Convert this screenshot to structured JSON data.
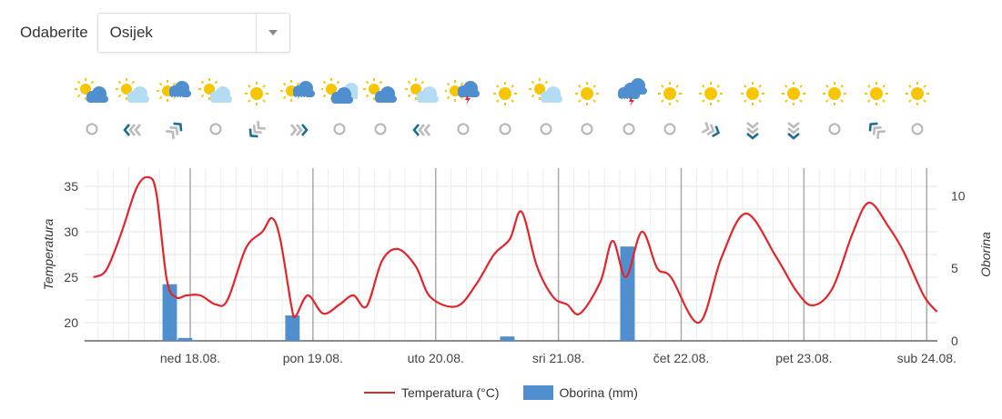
{
  "picker": {
    "label": "Odaberite",
    "value": "Osijek"
  },
  "forecast_icons": [
    "partly-cloudy-dark",
    "partly-cloudy-light",
    "partly-cloudy-rain",
    "partly-cloudy-light",
    "sunny",
    "partly-cloudy-rain",
    "partly-cloudy-mixed",
    "partly-cloudy-dark",
    "partly-cloudy-light",
    "partly-cloudy-thunder",
    "sunny",
    "partly-cloudy-light",
    "sunny",
    "rain-thunder-cloud",
    "sunny",
    "sunny",
    "sunny",
    "sunny",
    "sunny",
    "sunny",
    "sunny"
  ],
  "wind": [
    null,
    270,
    45,
    null,
    225,
    90,
    null,
    null,
    270,
    null,
    null,
    null,
    null,
    null,
    null,
    110,
    180,
    180,
    null,
    315,
    null
  ],
  "colors": {
    "temperature": "#e3242b",
    "precipitation": "#4f8fcf",
    "wind_strong": "#1a6e96",
    "wind_weak": "#bbbbbb"
  },
  "legend": {
    "temperature": "Temperatura (°C)",
    "precipitation": "Oborina (mm)"
  },
  "chart_data": {
    "type": "line+bar",
    "x_unit": "hours from 17.08. 00:00",
    "xlim": [
      3.4,
      170
    ],
    "x_ticks": [
      {
        "h": 24,
        "label": "ned 18.08."
      },
      {
        "h": 48,
        "label": "pon 19.08."
      },
      {
        "h": 72,
        "label": "uto 20.08."
      },
      {
        "h": 96,
        "label": "sri 21.08."
      },
      {
        "h": 120,
        "label": "čet 22.08."
      },
      {
        "h": 144,
        "label": "pet 23.08."
      },
      {
        "h": 168,
        "label": "sub 24.08."
      }
    ],
    "y_left": {
      "label": "Temperatura",
      "lim": [
        18,
        37
      ],
      "ticks": [
        20,
        25,
        30,
        35
      ]
    },
    "y_right": {
      "label": "Oborina",
      "lim": [
        0,
        11.9
      ],
      "ticks": [
        0,
        5,
        10
      ]
    },
    "series": [
      {
        "name": "Temperatura (°C)",
        "type": "line",
        "axis": "left",
        "points": [
          [
            5.1,
            25.0
          ],
          [
            7.6,
            25.8
          ],
          [
            10.5,
            29.8
          ],
          [
            13.5,
            34.8
          ],
          [
            15.8,
            36.0
          ],
          [
            17.4,
            34.2
          ],
          [
            19.4,
            24.8
          ],
          [
            21.2,
            22.8
          ],
          [
            23.3,
            23.0
          ],
          [
            26,
            23.0
          ],
          [
            29,
            22.0
          ],
          [
            31.3,
            22.5
          ],
          [
            34.9,
            28.2
          ],
          [
            38.1,
            30.0
          ],
          [
            40,
            31.5
          ],
          [
            41.6,
            29.2
          ],
          [
            43.8,
            21.8
          ],
          [
            44.6,
            20.7
          ],
          [
            47,
            23.0
          ],
          [
            50,
            21.0
          ],
          [
            53.2,
            22.0
          ],
          [
            55.9,
            23.0
          ],
          [
            58.5,
            21.8
          ],
          [
            61.5,
            26.8
          ],
          [
            64.6,
            28.1
          ],
          [
            68.1,
            26.2
          ],
          [
            71,
            22.8
          ],
          [
            76.1,
            21.8
          ],
          [
            79.9,
            24.2
          ],
          [
            83.4,
            27.5
          ],
          [
            86.5,
            29.2
          ],
          [
            88.8,
            32.2
          ],
          [
            91.8,
            26.2
          ],
          [
            95,
            22.8
          ],
          [
            97.7,
            22.0
          ],
          [
            100.2,
            21.0
          ],
          [
            104.2,
            24.5
          ],
          [
            106.6,
            29.0
          ],
          [
            109.2,
            25.0
          ],
          [
            112.3,
            30.0
          ],
          [
            115.3,
            26.0
          ],
          [
            118,
            25.0
          ],
          [
            123.5,
            20.0
          ],
          [
            127.9,
            27.2
          ],
          [
            132.7,
            32.0
          ],
          [
            138.6,
            27.2
          ],
          [
            142.5,
            23.5
          ],
          [
            145.7,
            21.9
          ],
          [
            149.6,
            23.8
          ],
          [
            153.5,
            29.8
          ],
          [
            156.7,
            33.2
          ],
          [
            160.6,
            30.5
          ],
          [
            163.5,
            27.8
          ],
          [
            167.4,
            23.0
          ],
          [
            170,
            21.2
          ]
        ]
      },
      {
        "name": "Oborina (mm)",
        "type": "bar",
        "axis": "right",
        "bar_hours": 3,
        "points": [
          [
            20,
            3.9
          ],
          [
            23,
            0.2
          ],
          [
            44,
            1.75
          ],
          [
            86,
            0.3
          ],
          [
            109.5,
            6.5
          ]
        ]
      }
    ]
  }
}
